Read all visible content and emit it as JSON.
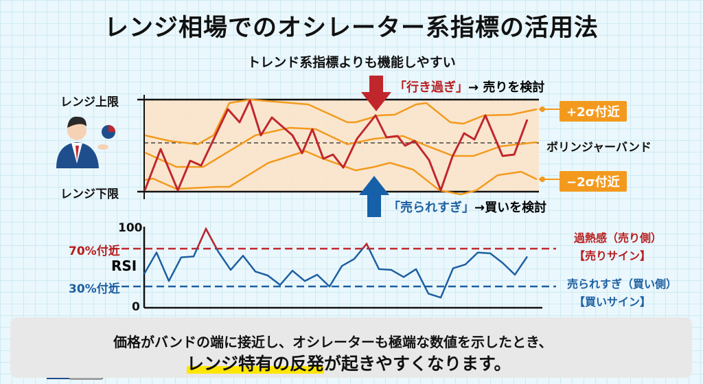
{
  "title": "レンジ相場でのオシレーター系指標の活用法",
  "subtitle": "トレンド系指標よりも機能しやすい",
  "price_panel": {
    "upper_label": "レンジ上限",
    "lower_label": "レンジ下限",
    "sell_callout_quote": "「行き過ぎ」",
    "sell_callout_rest": "→ 売りを検討",
    "buy_callout_quote": "「売られすぎ」",
    "buy_callout_rest": "→買いを検討",
    "upper_band_tag": "+2σ付近",
    "band_label": "ボリンジャーバンド",
    "lower_band_tag": "−2σ付近"
  },
  "rsi_panel": {
    "label": "RSI",
    "tick_100": "100",
    "tick_0": "0",
    "overbought_label": "70%付近",
    "oversold_label": "30%付近",
    "overbought_note": "過熱感（売り側）",
    "sell_sign": "【売りサイン】",
    "oversold_note": "売られすぎ（買い側）",
    "buy_sign": "【買いサイン】",
    "values": [
      42,
      69,
      33,
      63,
      64,
      99,
      70,
      47,
      65,
      45,
      40,
      28,
      46,
      33,
      41,
      26,
      52,
      61,
      80,
      48,
      47,
      38,
      48,
      17,
      12,
      49,
      54,
      69,
      68,
      56,
      41,
      64
    ],
    "overbought_level": 70,
    "oversold_level": 30
  },
  "banner": {
    "line1": "価格がバンドの端に接近し、オシレーターも極端な数値を示したとき、",
    "line2_highlight": "レンジ特有の反発",
    "line2_rest": "が起きやすくなります。"
  },
  "colors": {
    "price": "#c0272d",
    "band": "#f39a1e",
    "rsi": "#1d5fa0",
    "sell": "#c0272d",
    "buy": "#1560a8",
    "band_fill": "#fde3c6"
  }
}
